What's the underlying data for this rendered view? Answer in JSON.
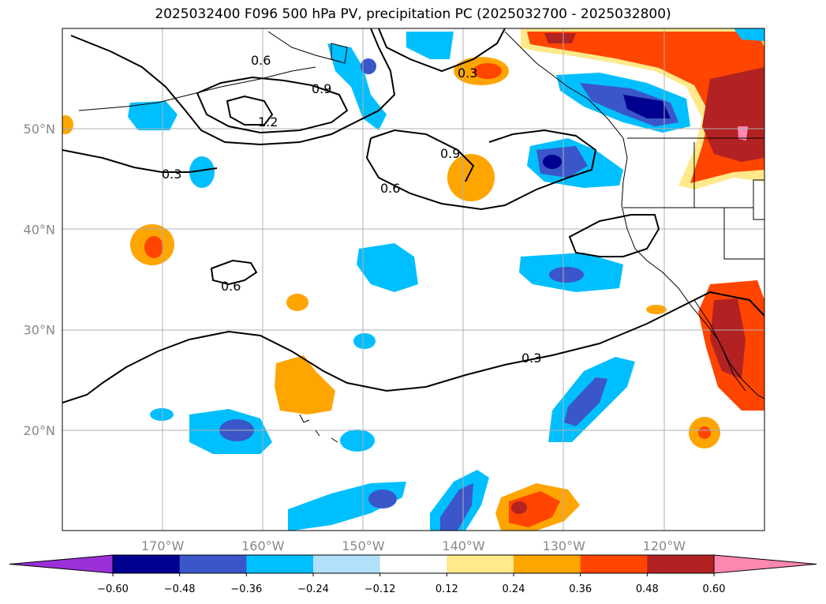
{
  "title": "2025032400 F096 500 hPa PV, precipitation PC (2025032700 - 2025032800)",
  "map": {
    "lon_range": [
      -180,
      -110
    ],
    "lat_range": [
      10,
      60
    ],
    "lat_ticks": [
      {
        "value": 50,
        "label": "50°N"
      },
      {
        "value": 40,
        "label": "40°N"
      },
      {
        "value": 30,
        "label": "30°N"
      },
      {
        "value": 20,
        "label": "20°N"
      }
    ],
    "lon_ticks": [
      {
        "value": -170,
        "label": "170°W"
      },
      {
        "value": -160,
        "label": "160°W"
      },
      {
        "value": -150,
        "label": "150°W"
      },
      {
        "value": -140,
        "label": "140°W"
      },
      {
        "value": -130,
        "label": "130°W"
      },
      {
        "value": -120,
        "label": "120°W"
      }
    ],
    "grid": true,
    "pv_contour_labels": [
      "0.3",
      "0.6",
      "0.9",
      "1.2"
    ]
  },
  "colorbar": {
    "levels": [
      -0.6,
      -0.48,
      -0.36,
      -0.24,
      -0.12,
      0.12,
      0.24,
      0.36,
      0.48,
      0.6
    ],
    "labels": [
      "−0.60",
      "−0.48",
      "−0.36",
      "−0.24",
      "−0.12",
      "0.12",
      "0.24",
      "0.36",
      "0.48",
      "0.60"
    ],
    "colors": [
      "#9b30d9",
      "#000090",
      "#3a56c8",
      "#00bfff",
      "#b0e0fa",
      "#ffffff",
      "#ffe98a",
      "#ffa500",
      "#ff4500",
      "#b22222",
      "#ff88b0"
    ],
    "extend": "both"
  }
}
